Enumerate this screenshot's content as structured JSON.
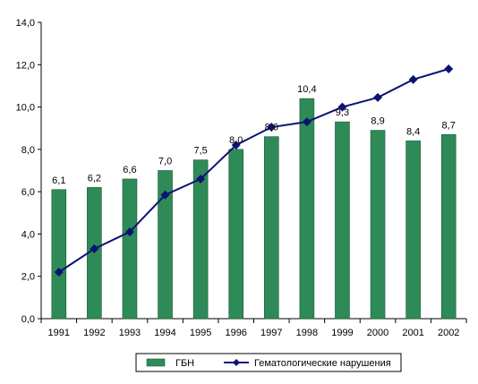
{
  "chart_data": {
    "type": "bar",
    "categories": [
      "1991",
      "1992",
      "1993",
      "1994",
      "1995",
      "1996",
      "1997",
      "1998",
      "1999",
      "2000",
      "2001",
      "2002"
    ],
    "y_ticks": [
      "0,0",
      "2,0",
      "4,0",
      "6,0",
      "8,0",
      "10,0",
      "12,0",
      "14,0"
    ],
    "ylim": [
      0,
      14
    ],
    "grid": false,
    "legend_position": "bottom",
    "series": [
      {
        "name": "ГБН",
        "type": "bar",
        "color": "#2e8b57",
        "values": [
          6.1,
          6.2,
          6.6,
          7.0,
          7.5,
          8.0,
          8.6,
          10.4,
          9.3,
          8.9,
          8.4,
          8.7
        ],
        "labels": [
          "6,1",
          "6,2",
          "6,6",
          "7,0",
          "7,5",
          "8,0",
          "8,6",
          "10,4",
          "9,3",
          "8,9",
          "8,4",
          "8,7"
        ]
      },
      {
        "name": "Гематологические нарушения",
        "type": "line",
        "color": "#0a1473",
        "marker": "diamond",
        "values": [
          2.2,
          3.3,
          4.1,
          5.85,
          6.6,
          8.2,
          9.05,
          9.3,
          10.0,
          10.45,
          11.3,
          11.8
        ]
      }
    ]
  }
}
